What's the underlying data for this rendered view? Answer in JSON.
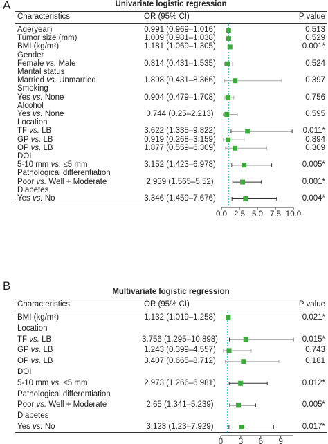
{
  "panels": [
    {
      "letter": "A",
      "title": "Univariate logistic regression",
      "headers": {
        "characteristics": "Characteristics",
        "or": "OR (95% CI)",
        "p": "P value"
      },
      "rows": [
        {
          "label": "Age(year)",
          "or_text": "0.991 (0.969–1.016)",
          "p_text": "0.513"
        },
        {
          "label": "Tumor size (mm)",
          "or_text": "1.009 (0.981–1.038)",
          "p_text": "0.529"
        },
        {
          "label": "BMI (kg/m²)",
          "or_text": "1.181 (1.069–1.305)",
          "p_text": "0.001*"
        },
        {
          "label": "Gender",
          "or_text": "",
          "p_text": ""
        },
        {
          "label": "Female vs. Male",
          "or_text": "0.814 (0.431–1.535)",
          "p_text": "0.524"
        },
        {
          "label": "Marital status",
          "or_text": "",
          "p_text": ""
        },
        {
          "label": "Married vs. Unmarried",
          "or_text": "1.898 (0.431–8.366)",
          "p_text": "0.397"
        },
        {
          "label": "Smoking",
          "or_text": "",
          "p_text": ""
        },
        {
          "label": "Yes vs. None",
          "or_text": "0.904 (0.479–1.708)",
          "p_text": "0.756"
        },
        {
          "label": "Alcohol",
          "or_text": "",
          "p_text": ""
        },
        {
          "label": "Yes vs. None",
          "or_text": "0.744 (0.25–2.213)",
          "p_text": "0.595"
        },
        {
          "label": "Location",
          "or_text": "",
          "p_text": ""
        },
        {
          "label": "TF vs. LB",
          "or_text": "3.622 (1.335–9.822)",
          "p_text": "0.011*"
        },
        {
          "label": "GP vs. LB",
          "or_text": "0.919 (0.268–3.159)",
          "p_text": "0.894"
        },
        {
          "label": "OP vs. LB",
          "or_text": "1.877 (0.559–6.309)",
          "p_text": "0.309"
        },
        {
          "label": "DOI",
          "or_text": "",
          "p_text": ""
        },
        {
          "label": "5-10 mm vs. ≤5 mm",
          "or_text": "3.152 (1.423–6.978)",
          "p_text": "0.005*"
        },
        {
          "label": "Pathological differentiation",
          "or_text": "",
          "p_text": ""
        },
        {
          "label": "Poor vs. Well + Moderate",
          "or_text": "2.939 (1.565–5.52)",
          "p_text": "0.001*"
        },
        {
          "label": "Diabetes",
          "or_text": "",
          "p_text": ""
        },
        {
          "label": "Yes vs. No",
          "or_text": "3.346 (1.459–7.676)",
          "p_text": "0.004*"
        }
      ],
      "x_ticks": [
        "0.0",
        "2.5",
        "5.0",
        "7.5",
        "10.0"
      ]
    },
    {
      "letter": "B",
      "title": "Multivariate logistic regression",
      "headers": {
        "characteristics": "Characteristics",
        "or": "OR (95% CI)",
        "p": "P value"
      },
      "rows": [
        {
          "label": "BMI (kg/m²)",
          "or_text": "1.132 (1.019–1.258)",
          "p_text": "0.021*"
        },
        {
          "label": "Location",
          "or_text": "",
          "p_text": ""
        },
        {
          "label": "TF vs. LB",
          "or_text": "3.756 (1.295–10.898)",
          "p_text": "0.015*"
        },
        {
          "label": "GP vs. LB",
          "or_text": "1.243 (0.399–4.557)",
          "p_text": "0.743"
        },
        {
          "label": "OP vs. LB",
          "or_text": "3.407 (0.665–8.712)",
          "p_text": "0.181"
        },
        {
          "label": "DOI",
          "or_text": "",
          "p_text": ""
        },
        {
          "label": "5-10 mm vs. ≤5 mm",
          "or_text": "2.973 (1.266–6.981)",
          "p_text": "0.012*"
        },
        {
          "label": "Pathological differentiation",
          "or_text": "",
          "p_text": ""
        },
        {
          "label": "Poor vs. Well + Moderate",
          "or_text": "2.65 (1.341–5.239)",
          "p_text": "0.005*"
        },
        {
          "label": "Diabetes",
          "or_text": "",
          "p_text": ""
        },
        {
          "label": "Yes vs. No",
          "or_text": "3.123 (1.23–7.929)",
          "p_text": "0.017*"
        }
      ],
      "x_ticks": [
        "0",
        "3",
        "6",
        "9"
      ]
    }
  ],
  "colors": {
    "marker": "#3cab3c",
    "ref_line": "#3fb6c6",
    "ci_gray": "#aaaaaa",
    "ci_dark": "#333333"
  },
  "chart_data": [
    {
      "type": "forest",
      "title": "Univariate logistic regression",
      "reference_line": 1,
      "xlim": [
        0,
        10
      ],
      "x_ticks": [
        0,
        2.5,
        5,
        7.5,
        10
      ],
      "points": [
        {
          "label": "Age(year)",
          "or": 0.991,
          "lower": 0.969,
          "upper": 1.016,
          "p": 0.513
        },
        {
          "label": "Tumor size (mm)",
          "or": 1.009,
          "lower": 0.981,
          "upper": 1.038,
          "p": 0.529
        },
        {
          "label": "BMI (kg/m²)",
          "or": 1.181,
          "lower": 1.069,
          "upper": 1.305,
          "p": 0.001
        },
        {
          "label": "Female vs. Male",
          "or": 0.814,
          "lower": 0.431,
          "upper": 1.535,
          "p": 0.524
        },
        {
          "label": "Married vs. Unmarried",
          "or": 1.898,
          "lower": 0.431,
          "upper": 8.366,
          "p": 0.397
        },
        {
          "label": "Yes vs. None",
          "or": 0.904,
          "lower": 0.479,
          "upper": 1.708,
          "p": 0.756
        },
        {
          "label": "Yes vs. None",
          "or": 0.744,
          "lower": 0.25,
          "upper": 2.213,
          "p": 0.595
        },
        {
          "label": "TF vs. LB",
          "or": 3.622,
          "lower": 1.335,
          "upper": 9.822,
          "p": 0.011
        },
        {
          "label": "GP vs. LB",
          "or": 0.919,
          "lower": 0.268,
          "upper": 3.159,
          "p": 0.894
        },
        {
          "label": "OP vs. LB",
          "or": 1.877,
          "lower": 0.559,
          "upper": 6.309,
          "p": 0.309
        },
        {
          "label": "5-10 mm vs. ≤5 mm",
          "or": 3.152,
          "lower": 1.423,
          "upper": 6.978,
          "p": 0.005
        },
        {
          "label": "Poor vs. Well + Moderate",
          "or": 2.939,
          "lower": 1.565,
          "upper": 5.52,
          "p": 0.001
        },
        {
          "label": "Yes vs. No",
          "or": 3.346,
          "lower": 1.459,
          "upper": 7.676,
          "p": 0.004
        }
      ]
    },
    {
      "type": "forest",
      "title": "Multivariate logistic regression",
      "reference_line": 1,
      "xlim": [
        0,
        10.9
      ],
      "x_ticks": [
        0,
        3,
        6,
        9
      ],
      "points": [
        {
          "label": "BMI (kg/m²)",
          "or": 1.132,
          "lower": 1.019,
          "upper": 1.258,
          "p": 0.021
        },
        {
          "label": "TF vs. LB",
          "or": 3.756,
          "lower": 1.295,
          "upper": 10.898,
          "p": 0.015
        },
        {
          "label": "GP vs. LB",
          "or": 1.243,
          "lower": 0.399,
          "upper": 4.557,
          "p": 0.743
        },
        {
          "label": "OP vs. LB",
          "or": 3.407,
          "lower": 0.665,
          "upper": 8.712,
          "p": 0.181
        },
        {
          "label": "5-10 mm vs. ≤5 mm",
          "or": 2.973,
          "lower": 1.266,
          "upper": 6.981,
          "p": 0.012
        },
        {
          "label": "Poor vs. Well + Moderate",
          "or": 2.65,
          "lower": 1.341,
          "upper": 5.239,
          "p": 0.005
        },
        {
          "label": "Yes vs. No",
          "or": 3.123,
          "lower": 1.23,
          "upper": 7.929,
          "p": 0.017
        }
      ]
    }
  ]
}
